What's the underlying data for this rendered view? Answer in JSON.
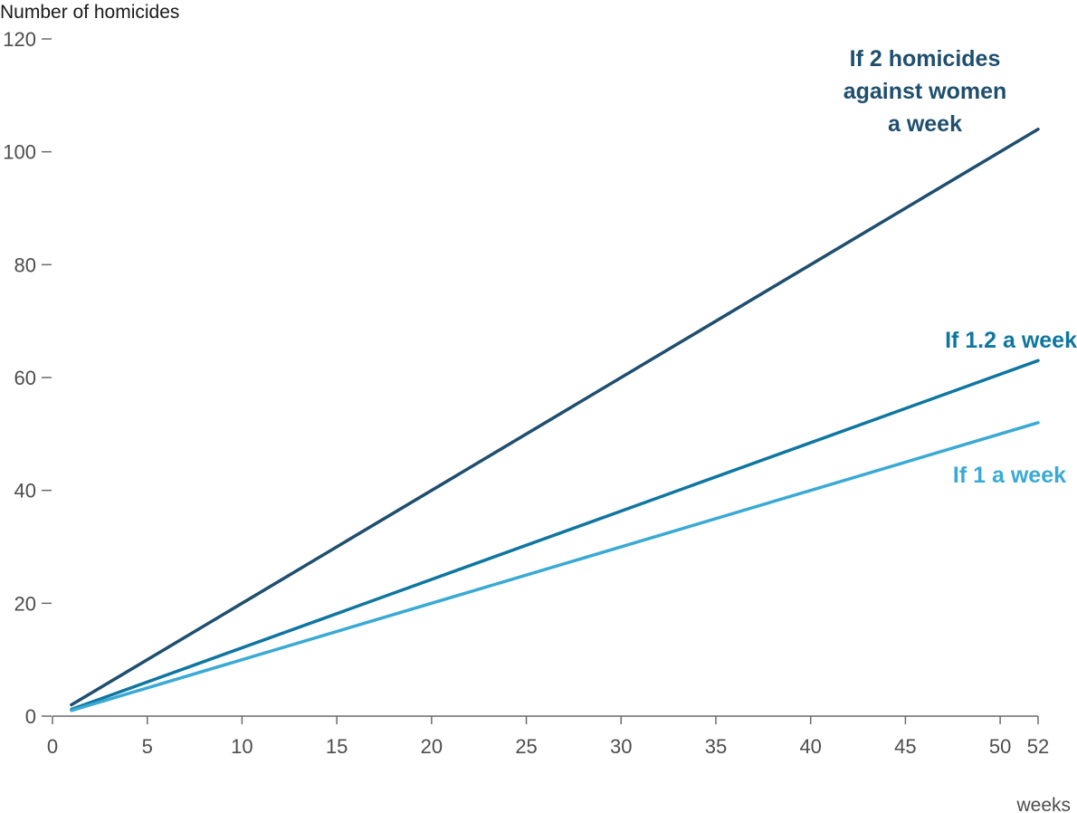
{
  "chart_data": {
    "type": "line",
    "ylabel": "Number of homicides",
    "xlabel": "weeks",
    "xlim": [
      0,
      52
    ],
    "ylim": [
      0,
      120
    ],
    "x_ticks": [
      0,
      5,
      10,
      15,
      20,
      25,
      30,
      35,
      40,
      45,
      50,
      52
    ],
    "y_ticks": [
      0,
      20,
      40,
      60,
      80,
      100,
      120
    ],
    "grid": false,
    "x": [
      1,
      52
    ],
    "series": [
      {
        "name": "If 2 homicides against women a week",
        "label_lines": [
          "If 2 homicides",
          "against women",
          "a week"
        ],
        "values": [
          2,
          104
        ],
        "color": "#1f4e6e"
      },
      {
        "name": "If 1.2 a week",
        "label_lines": [
          "If 1.2 a week"
        ],
        "values": [
          1.2,
          63
        ],
        "color": "#0f76a0"
      },
      {
        "name": "If 1 a week",
        "label_lines": [
          "If 1 a week"
        ],
        "values": [
          1,
          52
        ],
        "color": "#3aaad4"
      }
    ]
  }
}
